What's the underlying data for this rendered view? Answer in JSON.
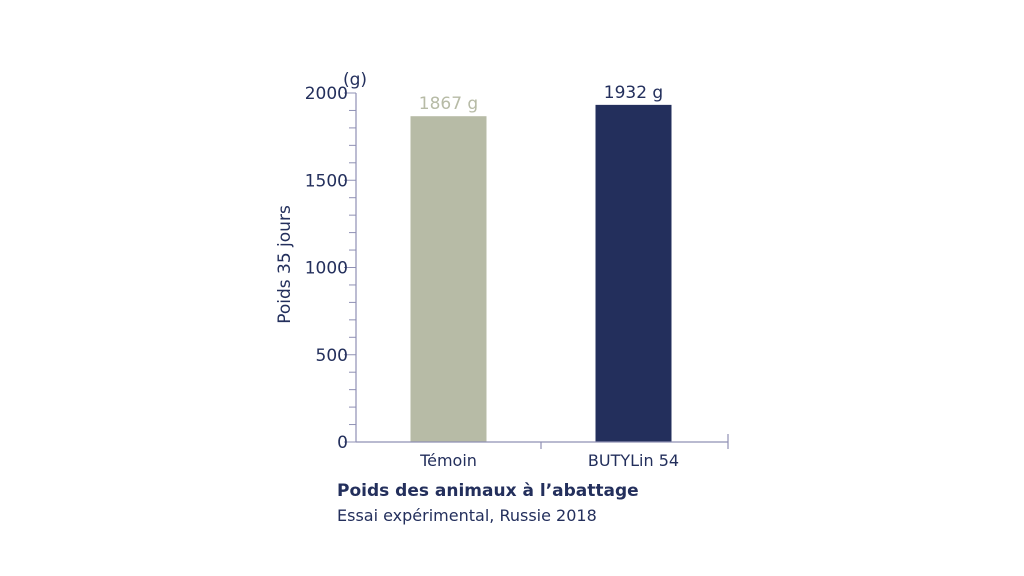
{
  "colors": {
    "axis": "#8f90b4",
    "text": "#232f5c"
  },
  "chart_data": {
    "type": "bar",
    "categories": [
      "Témoin",
      "BUTYLin 54"
    ],
    "values": [
      1867,
      1932
    ],
    "value_labels": [
      "1867 g",
      "1932 g"
    ],
    "bar_colors": [
      "#b7bba6",
      "#232f5c"
    ],
    "ylabel": "Poids 35 jours",
    "unit": "(g)",
    "ylim": [
      0,
      2000
    ],
    "yticks": [
      0,
      500,
      1000,
      1500,
      2000
    ],
    "ytick_labels": [
      "0",
      "500",
      "1000",
      "1500",
      "2000"
    ],
    "title": "Poids des animaux à l’abattage",
    "subtitle": "Essai expérimental, Russie 2018",
    "grid": false
  }
}
